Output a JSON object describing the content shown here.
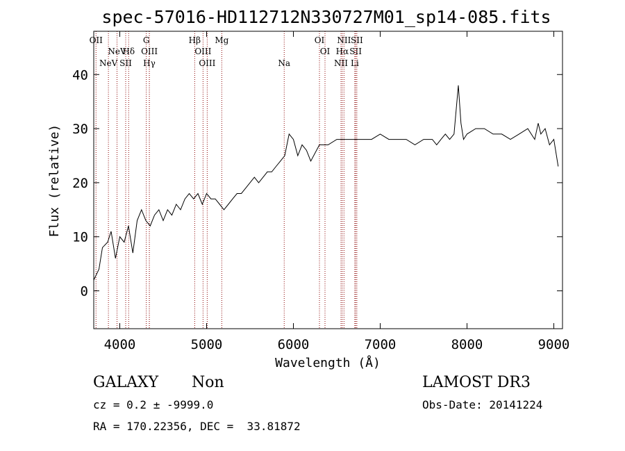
{
  "colors": {
    "spectrum": "#000000",
    "lines": "#8b0000",
    "frame": "#000000"
  },
  "chart_data": {
    "type": "line",
    "title": "spec-57016-HD112712N330727M01_sp14-085.fits",
    "xlabel": "Wavelength (Å)",
    "ylabel": "Flux (relative)",
    "xlim": [
      3700,
      9100
    ],
    "ylim": [
      -7,
      48
    ],
    "xticks": [
      4000,
      5000,
      6000,
      7000,
      8000,
      9000
    ],
    "yticks": [
      0,
      10,
      20,
      30,
      40
    ],
    "x": [
      3700,
      3760,
      3800,
      3860,
      3900,
      3950,
      4000,
      4050,
      4100,
      4150,
      4200,
      4250,
      4300,
      4350,
      4400,
      4450,
      4500,
      4550,
      4600,
      4650,
      4700,
      4750,
      4800,
      4850,
      4900,
      4950,
      5000,
      5050,
      5100,
      5150,
      5200,
      5250,
      5300,
      5350,
      5400,
      5450,
      5500,
      5550,
      5600,
      5650,
      5700,
      5750,
      5800,
      5850,
      5900,
      5950,
      6000,
      6050,
      6100,
      6150,
      6200,
      6300,
      6400,
      6500,
      6600,
      6700,
      6800,
      6900,
      7000,
      7100,
      7200,
      7300,
      7400,
      7500,
      7600,
      7650,
      7700,
      7750,
      7800,
      7850,
      7900,
      7930,
      7960,
      8000,
      8100,
      8200,
      8300,
      8400,
      8500,
      8600,
      8700,
      8780,
      8820,
      8850,
      8900,
      8950,
      9000,
      9050
    ],
    "y": [
      2,
      4,
      8,
      9,
      11,
      6,
      10,
      9,
      12,
      7,
      13,
      15,
      13,
      12,
      14,
      15,
      13,
      15,
      14,
      16,
      15,
      17,
      18,
      17,
      18,
      16,
      18,
      17,
      17,
      16,
      15,
      16,
      17,
      18,
      18,
      19,
      20,
      21,
      20,
      21,
      22,
      22,
      23,
      24,
      25,
      29,
      28,
      25,
      27,
      26,
      24,
      27,
      27,
      28,
      28,
      28,
      28,
      28,
      29,
      28,
      28,
      28,
      27,
      28,
      28,
      27,
      28,
      29,
      28,
      29,
      38,
      31,
      28,
      29,
      30,
      30,
      29,
      29,
      28,
      29,
      30,
      28,
      31,
      29,
      30,
      27,
      28,
      23
    ],
    "emission_lines": [
      {
        "wavelength": 3726,
        "label": "OII",
        "row": 0
      },
      {
        "wavelength": 3869,
        "label": "NeV",
        "row": 2
      },
      {
        "wavelength": 3968,
        "label": "NeV",
        "row": 1
      },
      {
        "wavelength": 4068,
        "label": "SII",
        "row": 2
      },
      {
        "wavelength": 4102,
        "label": "Hδ",
        "row": 1
      },
      {
        "wavelength": 4340,
        "label": "Hγ",
        "row": 2
      },
      {
        "wavelength": 4341,
        "label": "OIII",
        "row": 1
      },
      {
        "wavelength": 4305,
        "label": "G",
        "row": 0
      },
      {
        "wavelength": 4863,
        "label": "Hβ",
        "row": 0
      },
      {
        "wavelength": 4959,
        "label": "OIII",
        "row": 1
      },
      {
        "wavelength": 5007,
        "label": "OIII",
        "row": 2
      },
      {
        "wavelength": 5175,
        "label": "Mg",
        "row": 0
      },
      {
        "wavelength": 5894,
        "label": "Na",
        "row": 2
      },
      {
        "wavelength": 6300,
        "label": "OI",
        "row": 0
      },
      {
        "wavelength": 6364,
        "label": "OI",
        "row": 1
      },
      {
        "wavelength": 6548,
        "label": "NII",
        "row": 2
      },
      {
        "wavelength": 6563,
        "label": "Hα",
        "row": 1
      },
      {
        "wavelength": 6583,
        "label": "NII",
        "row": 0
      },
      {
        "wavelength": 6707,
        "label": "Li",
        "row": 2
      },
      {
        "wavelength": 6717,
        "label": "SII",
        "row": 1
      },
      {
        "wavelength": 6731,
        "label": "SII",
        "row": 0
      }
    ]
  },
  "info": {
    "class": "GALAXY",
    "subclass": "Non",
    "survey": "LAMOST DR3",
    "redshift": "cz = 0.2 ± -9999.0",
    "obs_date": "Obs-Date: 20141224",
    "coords": "RA = 170.22356, DEC =  33.81872"
  }
}
